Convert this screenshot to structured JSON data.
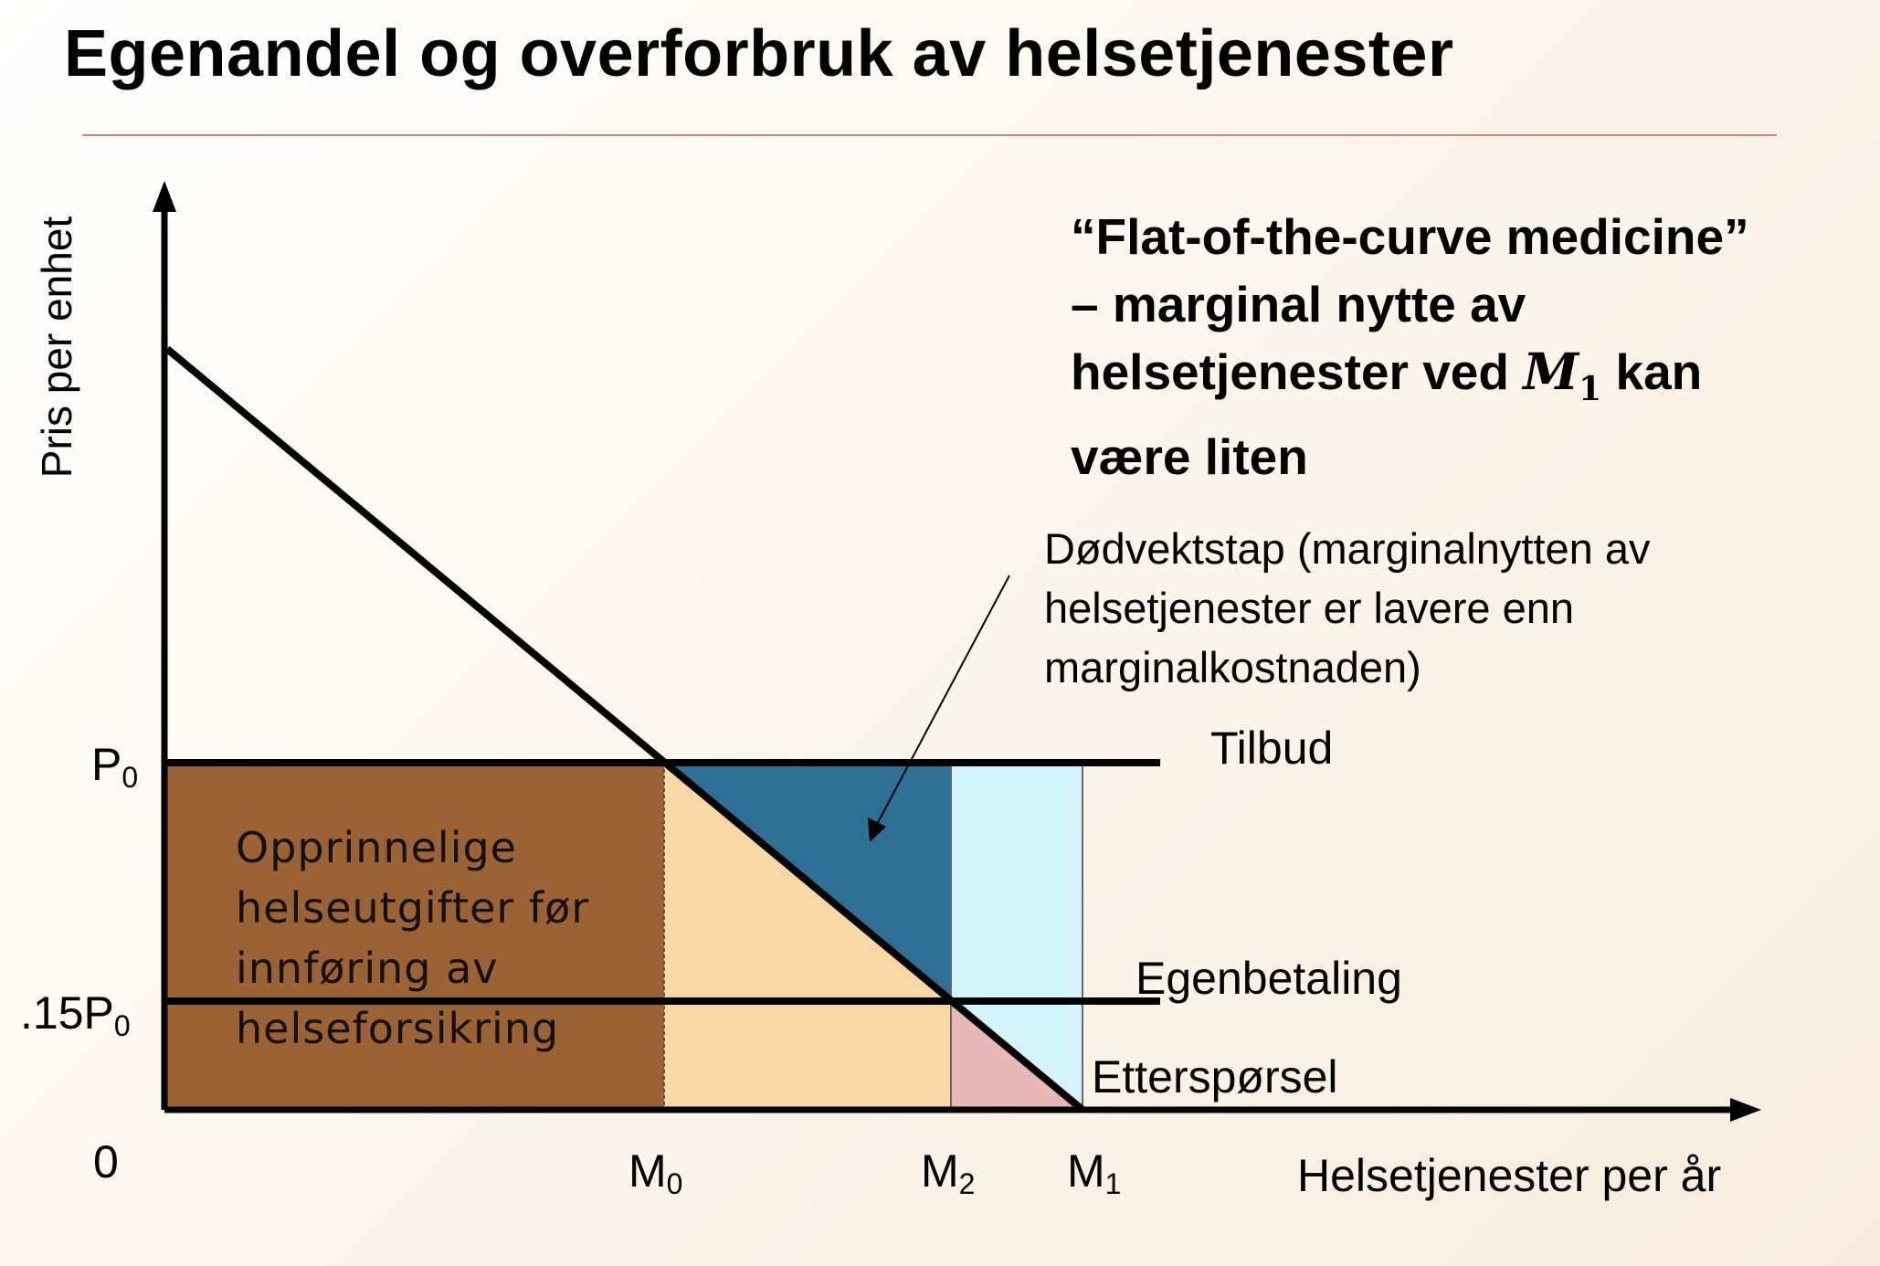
{
  "title": "Egenandel og overforbruk av helsetjenester",
  "note": {
    "line1": "“Flat-of-the-curve medicine”",
    "line2": "– marginal nytte av",
    "line3_pre": "helsetjenester ved ",
    "line3_var": "M",
    "line3_sub": "1",
    "line3_post": " kan",
    "line4": "være liten"
  },
  "callout": {
    "line1": "Dødvektstap (marginalnytten av",
    "line2": "helsetjenester er lavere enn",
    "line3": "marginalkostnaden)"
  },
  "axes": {
    "y_label": "Pris per enhet",
    "x_label": "Helsetjenester per år",
    "origin": "0"
  },
  "y_ticks": {
    "p0_main": "P",
    "p0_sub": "0",
    "p15_main": ".15P",
    "p15_sub": "0"
  },
  "x_ticks": {
    "m0_main": "M",
    "m0_sub": "0",
    "m2_main": "M",
    "m2_sub": "2",
    "m1_main": "M",
    "m1_sub": "1"
  },
  "curves": {
    "supply": "Tilbud",
    "copay": "Egenbetaling",
    "demand": "Etterspørsel"
  },
  "area_label": {
    "line1": "Opprinnelige",
    "line2": "helseutgifter før",
    "line3": "innføring av",
    "line4": "helseforsikring"
  },
  "colors": {
    "original_spending": "#9b6233",
    "extra_spending": "#f7d7a3",
    "deadweight_loss": "#2e6f96",
    "uncovered_area": "#d3f4fc",
    "small_triangle": "#e8b8b8",
    "title_rule": "#d9826b"
  }
}
